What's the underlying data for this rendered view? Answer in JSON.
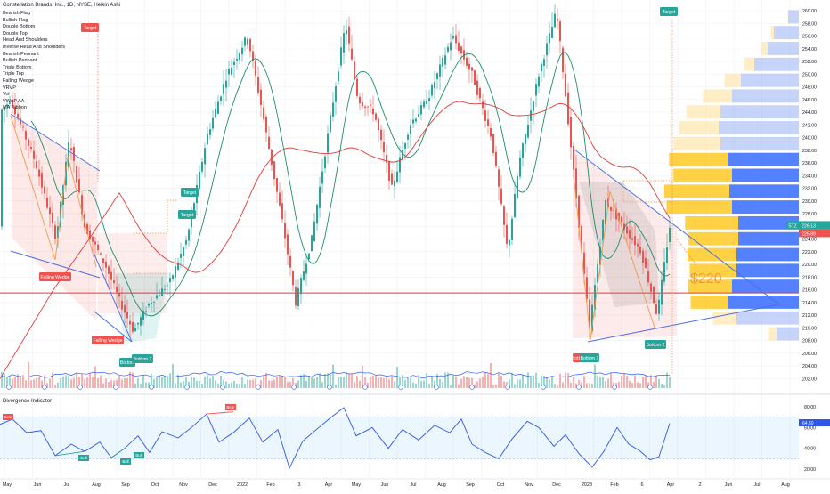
{
  "header": {
    "title": "Constellation Brands, Inc., 1D, NYSE, Heikin Ashi",
    "indicators": [
      "Bearish Flag",
      "Bullish Flag",
      "Double Bottom",
      "Double Top",
      "Head And Shoulders",
      "Inverse Head And Shoulders",
      "Bearish Pennant",
      "Bullish Pennant",
      "Triple Bottom",
      "Triple Top",
      "Falling Wedge",
      "VRVP",
      "Vol",
      "VWAP AA",
      "MA Ribbon"
    ]
  },
  "colors": {
    "up": "#26a69a",
    "down": "#ef5350",
    "ma_green": "#1e8c6e",
    "ma_red": "#e53935",
    "wedge_line": "#4a6fe0",
    "vol_blue": "#2962ff",
    "profile_blue": "#4f7ef0",
    "profile_orange": "#ffc107",
    "osc": "#2f56e8"
  },
  "chart_data": [
    {
      "type": "candlestick",
      "title": "Constellation Brands, Inc., 1D, NYSE, Heikin Ashi",
      "ticker": "STZ",
      "y_axis": {
        "ticks": [
          202,
          204,
          206,
          208,
          210,
          212,
          214,
          216,
          218,
          220,
          222,
          224,
          226,
          228,
          230,
          232,
          234,
          236,
          238,
          240,
          242,
          244,
          246,
          248,
          250,
          252,
          254,
          256,
          258,
          260
        ],
        "range": [
          200.5,
          261
        ]
      },
      "x_axis": {
        "ticks": [
          "May",
          "Jun",
          "Jul",
          "Aug",
          "Sep",
          "Oct",
          "Nov",
          "Dec",
          "2022",
          "Feb",
          "3",
          "Apr",
          "May",
          "Jun",
          "Jul",
          "Aug",
          "Sep",
          "Oct",
          "Nov",
          "Dec",
          "2023",
          "Feb",
          "6",
          "Apr",
          "2",
          "Jun",
          "Jul",
          "Aug"
        ]
      },
      "price_labels": {
        "last": "226.13",
        "second": "225.89"
      },
      "key_levels": [
        215.5
      ],
      "annotations": {
        "target": "Target",
        "falling_wedge": "Falling Wedge",
        "bottom": "Bottom",
        "bottom2": "Bottom 2",
        "bottom1": "Bottom 1",
        "price_note": "$220"
      },
      "series_path": [
        [
          0,
          244
        ],
        [
          12,
          246
        ],
        [
          40,
          236
        ],
        [
          63,
          224
        ],
        [
          78,
          240
        ],
        [
          95,
          226
        ],
        [
          118,
          220
        ],
        [
          135,
          214
        ],
        [
          150,
          209.5
        ],
        [
          168,
          214
        ],
        [
          190,
          217
        ],
        [
          210,
          224
        ],
        [
          232,
          240
        ],
        [
          255,
          250
        ],
        [
          278,
          256
        ],
        [
          292,
          246
        ],
        [
          318,
          226
        ],
        [
          332,
          214
        ],
        [
          350,
          224
        ],
        [
          372,
          244
        ],
        [
          388,
          258
        ],
        [
          402,
          246
        ],
        [
          420,
          244
        ],
        [
          440,
          232
        ],
        [
          460,
          242
        ],
        [
          480,
          246
        ],
        [
          508,
          256
        ],
        [
          530,
          250
        ],
        [
          552,
          240
        ],
        [
          570,
          222
        ],
        [
          583,
          236
        ],
        [
          605,
          250
        ],
        [
          625,
          260
        ],
        [
          640,
          240
        ],
        [
          662,
          210
        ],
        [
          680,
          230
        ],
        [
          700,
          226
        ],
        [
          720,
          222
        ],
        [
          738,
          212
        ],
        [
          752,
          226
        ]
      ]
    },
    {
      "type": "line",
      "title": "Divergence Indicator",
      "y_axis": {
        "ticks": [
          20,
          40,
          60,
          80
        ],
        "range": [
          15,
          85
        ]
      },
      "series_path": [
        [
          0,
          63
        ],
        [
          14,
          68
        ],
        [
          30,
          55
        ],
        [
          46,
          57
        ],
        [
          62,
          33
        ],
        [
          80,
          44
        ],
        [
          95,
          37
        ],
        [
          112,
          46
        ],
        [
          125,
          31
        ],
        [
          140,
          40
        ],
        [
          155,
          52
        ],
        [
          168,
          36
        ],
        [
          182,
          56
        ],
        [
          200,
          50
        ],
        [
          215,
          60
        ],
        [
          232,
          73
        ],
        [
          246,
          46
        ],
        [
          262,
          55
        ],
        [
          280,
          69
        ],
        [
          295,
          46
        ],
        [
          312,
          58
        ],
        [
          325,
          21
        ],
        [
          340,
          47
        ],
        [
          358,
          60
        ],
        [
          372,
          70
        ],
        [
          386,
          79
        ],
        [
          400,
          52
        ],
        [
          418,
          60
        ],
        [
          436,
          40
        ],
        [
          452,
          58
        ],
        [
          470,
          48
        ],
        [
          488,
          62
        ],
        [
          505,
          55
        ],
        [
          518,
          68
        ],
        [
          530,
          44
        ],
        [
          545,
          36
        ],
        [
          560,
          30
        ],
        [
          575,
          49
        ],
        [
          592,
          66
        ],
        [
          605,
          60
        ],
        [
          622,
          42
        ],
        [
          635,
          53
        ],
        [
          650,
          35
        ],
        [
          665,
          22
        ],
        [
          678,
          37
        ],
        [
          693,
          60
        ],
        [
          706,
          44
        ],
        [
          718,
          38
        ],
        [
          730,
          29
        ],
        [
          740,
          32
        ],
        [
          752,
          64
        ]
      ],
      "labels": {
        "bear": "Bear",
        "bull": "Bull"
      }
    }
  ]
}
